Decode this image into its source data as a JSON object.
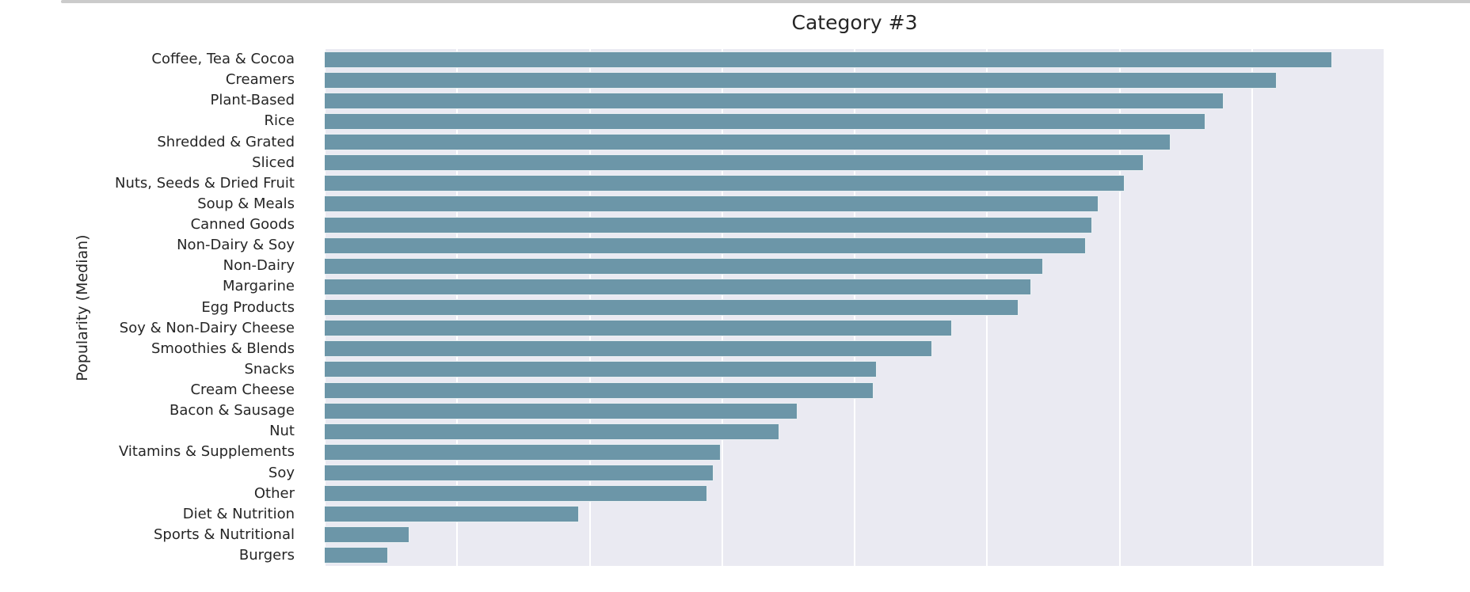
{
  "chart_data": {
    "type": "bar",
    "orientation": "horizontal",
    "title": "Category #3",
    "xlabel": "",
    "ylabel": "Popularity (Median)",
    "categories": [
      "Coffee, Tea & Cocoa",
      "Creamers",
      "Plant-Based",
      "Rice",
      "Shredded & Grated",
      "Sliced",
      "Nuts, Seeds & Dried Fruit",
      "Soup & Meals",
      "Canned Goods",
      "Non-Dairy & Soy",
      "Non-Dairy",
      "Margarine",
      "Egg Products",
      "Soy & Non-Dairy Cheese",
      "Smoothies & Blends",
      "Snacks",
      "Cream Cheese",
      "Bacon & Sausage",
      "Nut",
      "Vitamins & Supplements",
      "Soy",
      "Other",
      "Diet & Nutrition",
      "Sports & Nutritional",
      "Burgers"
    ],
    "values": [
      0.951,
      0.898,
      0.848,
      0.831,
      0.798,
      0.773,
      0.755,
      0.73,
      0.724,
      0.718,
      0.678,
      0.667,
      0.655,
      0.592,
      0.573,
      0.521,
      0.518,
      0.446,
      0.429,
      0.374,
      0.367,
      0.361,
      0.24,
      0.08,
      0.06
    ],
    "value_note": "fraction of x-axis span; no numeric x tick labels visible in figure",
    "xlim": [
      0,
      1
    ],
    "x_gridline_interval": 0.125,
    "grid": "white vertical gridlines on shaded plot background, no visible axis spines, no x tick labels",
    "legend": "none",
    "bar_color": "#6c96a8",
    "plot_background": "#eaeaf2",
    "gridline_color": "#ffffff",
    "text_color": "#262626",
    "top_strip_color": "#cbcbcb"
  }
}
